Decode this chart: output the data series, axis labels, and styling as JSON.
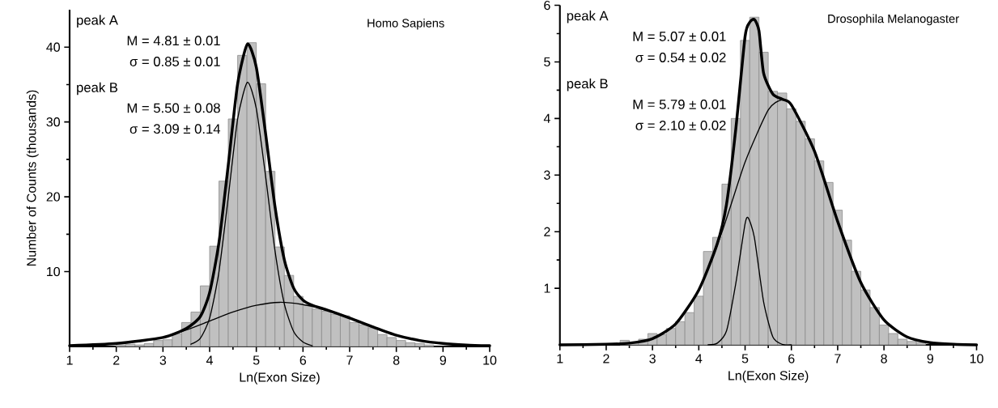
{
  "chart_data": [
    {
      "type": "histogram",
      "title": "Homo Sapiens",
      "xlabel": "Ln(Exon Size)",
      "ylabel": "Number of Counts (thousands)",
      "color": "#c0c0c0",
      "bins": [
        2.0,
        2.2,
        2.4,
        2.6,
        2.8,
        3.0,
        3.2,
        3.4,
        3.6,
        3.8,
        4.0,
        4.2,
        4.4,
        4.6,
        4.8,
        5.0,
        5.2,
        5.4,
        5.6,
        5.8,
        6.0,
        6.2,
        6.4,
        6.6,
        6.8,
        7.0,
        7.2,
        7.4,
        7.6,
        7.8,
        8.0,
        8.2,
        8.4,
        8.6,
        8.8
      ],
      "values": [
        0.2,
        0.3,
        0.2,
        0.4,
        0.8,
        0.9,
        1.7,
        3.2,
        4.6,
        8.1,
        13.4,
        22.1,
        30.4,
        38.9,
        40.6,
        35.1,
        23.4,
        13.3,
        9.5,
        6.7,
        5.5,
        5.0,
        4.7,
        4.3,
        4.1,
        3.2,
        2.9,
        2.5,
        1.6,
        1.2,
        0.8,
        0.5,
        0.4,
        0.2
      ],
      "series": [
        {
          "type": "line",
          "color": "#000000",
          "x": [
            1,
            2,
            3,
            3.5,
            3.8,
            4.0,
            4.2,
            4.4,
            4.6,
            4.81,
            5.0,
            5.2,
            5.4,
            5.6,
            5.8,
            6.0,
            6.2,
            6.5,
            7,
            7.5,
            8,
            8.5,
            9,
            9.5,
            10
          ],
          "values": [
            0.1,
            0.4,
            1.2,
            2.4,
            4.0,
            7.2,
            13.9,
            24.3,
            35.1,
            40.4,
            37.3,
            28.4,
            18.7,
            11.6,
            7.8,
            6.2,
            5.5,
            4.9,
            3.8,
            2.6,
            1.5,
            0.8,
            0.4,
            0.2,
            0.1
          ]
        },
        {
          "type": "line",
          "color": "#000000",
          "x": [
            3.6,
            3.8,
            4.0,
            4.2,
            4.4,
            4.6,
            4.81,
            5.0,
            5.2,
            5.4,
            5.6,
            5.8,
            6.0,
            6.2
          ],
          "values": [
            0.3,
            1.1,
            3.8,
            10.0,
            20.0,
            30.4,
            35.3,
            31.8,
            22.7,
            12.8,
            5.7,
            2.0,
            0.6,
            0.1
          ]
        },
        {
          "type": "line",
          "color": "#000000",
          "x": [
            1,
            1.5,
            2,
            2.5,
            3,
            3.5,
            4,
            4.5,
            5,
            5.5,
            6,
            6.5,
            7,
            7.5,
            8,
            8.5,
            9,
            9.5,
            10
          ],
          "values": [
            0.1,
            0.2,
            0.4,
            0.7,
            1.2,
            2.2,
            3.4,
            4.6,
            5.5,
            5.9,
            5.6,
            4.9,
            3.8,
            2.6,
            1.5,
            0.8,
            0.4,
            0.2,
            0.1
          ]
        }
      ],
      "xlim": [
        1,
        10
      ],
      "ylim": [
        0,
        45
      ],
      "xticks": [
        1,
        2,
        3,
        4,
        5,
        6,
        7,
        8,
        9,
        10
      ],
      "yticks": [
        10,
        20,
        30,
        40
      ],
      "annotations": [
        "peak A",
        "M = 4.81 ± 0.01",
        "σ = 0.85 ± 0.01",
        "peak B",
        "M = 5.50 ± 0.08",
        "σ = 3.09 ± 0.14"
      ]
    },
    {
      "type": "histogram",
      "title": "Drosophila Melanogaster",
      "xlabel": "Ln(Exon Size)",
      "color": "#c0c0c0",
      "bins": [
        2.3,
        2.5,
        2.7,
        2.9,
        3.1,
        3.3,
        3.5,
        3.7,
        3.9,
        4.1,
        4.3,
        4.5,
        4.7,
        4.9,
        5.1,
        5.3,
        5.5,
        5.7,
        5.9,
        6.1,
        6.3,
        6.5,
        6.7,
        6.9,
        7.1,
        7.3,
        7.5,
        7.7,
        7.9,
        8.1,
        8.3,
        8.5,
        8.7,
        8.9
      ],
      "values": [
        0.08,
        0.04,
        0.1,
        0.2,
        0.18,
        0.29,
        0.41,
        0.57,
        0.86,
        1.65,
        1.9,
        2.84,
        4.0,
        5.38,
        5.79,
        5.17,
        4.48,
        4.45,
        4.17,
        3.95,
        3.64,
        3.25,
        2.87,
        2.38,
        1.85,
        1.3,
        0.97,
        0.66,
        0.35,
        0.2,
        0.1,
        0.06,
        0.04
      ],
      "series": [
        {
          "type": "line",
          "color": "#000000",
          "x": [
            1,
            2,
            2.5,
            3,
            3.5,
            4,
            4.4,
            4.6,
            4.8,
            5.0,
            5.1,
            5.2,
            5.3,
            5.4,
            5.6,
            5.8,
            6.0,
            6.5,
            7,
            7.5,
            8,
            8.5,
            9,
            9.5,
            10
          ],
          "values": [
            0,
            0.01,
            0.03,
            0.11,
            0.37,
            0.97,
            1.79,
            2.49,
            3.82,
            5.45,
            5.7,
            5.75,
            5.55,
            4.8,
            4.43,
            4.34,
            4.24,
            3.42,
            2.18,
            1.1,
            0.44,
            0.14,
            0.04,
            0.01,
            0
          ]
        },
        {
          "type": "line",
          "color": "#000000",
          "x": [
            4.2,
            4.4,
            4.6,
            4.8,
            5.0,
            5.07,
            5.2,
            5.4,
            5.6,
            5.8,
            6.0
          ],
          "values": [
            0,
            0.03,
            0.25,
            1.09,
            2.14,
            2.24,
            1.9,
            0.76,
            0.14,
            0.01,
            0
          ]
        },
        {
          "type": "line",
          "color": "#000000",
          "x": [
            1,
            2,
            2.5,
            3,
            3.5,
            4,
            4.5,
            5,
            5.5,
            5.79,
            6,
            6.5,
            7,
            7.5,
            8,
            8.5,
            9,
            9.5,
            10
          ],
          "values": [
            0,
            0.01,
            0.03,
            0.11,
            0.37,
            0.97,
            1.99,
            3.23,
            4.15,
            4.33,
            4.24,
            3.42,
            2.18,
            1.1,
            0.44,
            0.14,
            0.04,
            0.01,
            0
          ]
        }
      ],
      "xlim": [
        1,
        10
      ],
      "ylim": [
        0,
        6
      ],
      "xticks": [
        1,
        2,
        3,
        4,
        5,
        6,
        7,
        8,
        9,
        10
      ],
      "yticks": [
        1,
        2,
        3,
        4,
        5,
        6
      ],
      "annotations": [
        "peak A",
        "M = 5.07 ± 0.01",
        "σ = 0.54 ± 0.02",
        "peak B",
        "M = 5.79 ± 0.01",
        "σ = 2.10 ± 0.02"
      ]
    }
  ]
}
